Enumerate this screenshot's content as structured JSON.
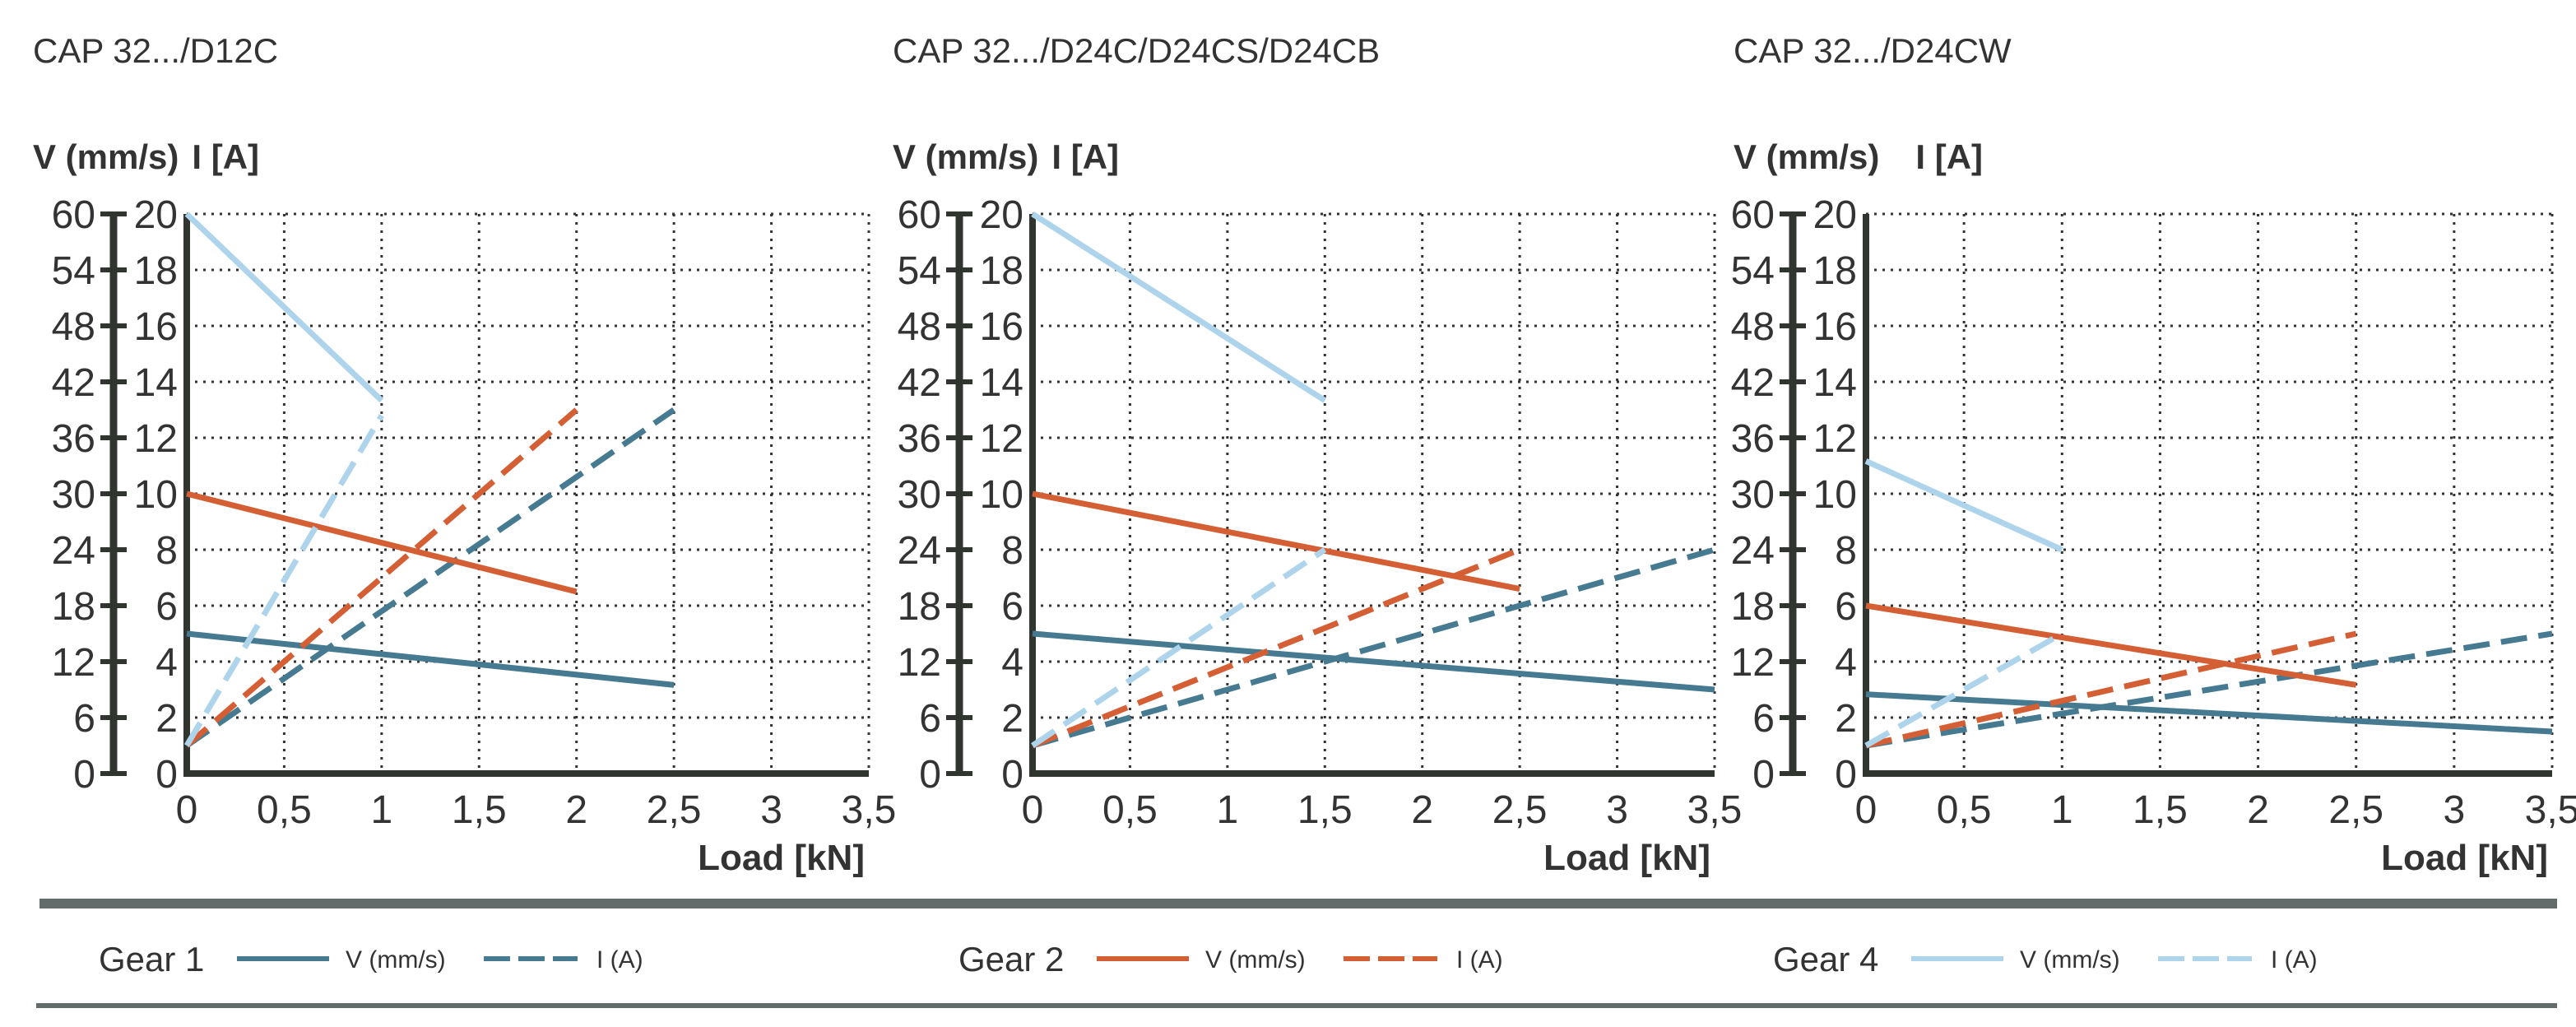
{
  "colors": {
    "gear1": "#457a91",
    "gear2": "#d45f35",
    "gear4": "#aed4ec",
    "axis": "#303530",
    "rule": "#646b6b",
    "grid": "#333333"
  },
  "legend": [
    {
      "gear": "Gear 1",
      "color_key": "gear1",
      "v_label": "V (mm/s)",
      "i_label": "I (A)"
    },
    {
      "gear": "Gear 2",
      "color_key": "gear2",
      "v_label": "V (mm/s)",
      "i_label": "I (A)"
    },
    {
      "gear": "Gear 4",
      "color_key": "gear4",
      "v_label": "V (mm/s)",
      "i_label": "I (A)"
    }
  ],
  "chart_data": [
    {
      "type": "line",
      "title": "CAP 32.../D12C",
      "ylabel_left": "V (mm/s)",
      "ylabel_right": "I [A]",
      "xlabel": "Load [kN]",
      "xlim": [
        0,
        3.5
      ],
      "ylim_v": [
        0,
        60
      ],
      "ylim_i": [
        0,
        20
      ],
      "x_ticks": [
        "0",
        "0,5",
        "1",
        "1,5",
        "2",
        "2,5",
        "3",
        "3,5"
      ],
      "v_ticks": [
        "0",
        "6",
        "12",
        "18",
        "24",
        "30",
        "36",
        "42",
        "48",
        "54",
        "60"
      ],
      "i_ticks": [
        "0",
        "2",
        "4",
        "6",
        "8",
        "10",
        "12",
        "14",
        "16",
        "18",
        "20"
      ],
      "grid": true,
      "series": [
        {
          "gear": "Gear 1",
          "quantity": "V",
          "style": "solid",
          "color_key": "gear1",
          "x": [
            0,
            2.5
          ],
          "y": [
            15,
            9.5
          ]
        },
        {
          "gear": "Gear 1",
          "quantity": "I",
          "style": "dashed",
          "color_key": "gear1",
          "x": [
            0,
            2.5
          ],
          "y": [
            1,
            13
          ]
        },
        {
          "gear": "Gear 2",
          "quantity": "V",
          "style": "solid",
          "color_key": "gear2",
          "x": [
            0,
            2
          ],
          "y": [
            30,
            19.5
          ]
        },
        {
          "gear": "Gear 2",
          "quantity": "I",
          "style": "dashed",
          "color_key": "gear2",
          "x": [
            0,
            2
          ],
          "y": [
            1,
            13
          ]
        },
        {
          "gear": "Gear 4",
          "quantity": "V",
          "style": "solid",
          "color_key": "gear4",
          "x": [
            0,
            1
          ],
          "y": [
            60,
            40
          ]
        },
        {
          "gear": "Gear 4",
          "quantity": "I",
          "style": "dashed",
          "color_key": "gear4",
          "x": [
            0,
            1
          ],
          "y": [
            1,
            12.8
          ]
        }
      ]
    },
    {
      "type": "line",
      "title": "CAP 32.../D24C/D24CS/D24CB",
      "ylabel_left": "V (mm/s)",
      "ylabel_right": "I [A]",
      "xlabel": "Load [kN]",
      "xlim": [
        0,
        3.5
      ],
      "ylim_v": [
        0,
        60
      ],
      "ylim_i": [
        0,
        20
      ],
      "x_ticks": [
        "0",
        "0,5",
        "1",
        "1,5",
        "2",
        "2,5",
        "3",
        "3,5"
      ],
      "v_ticks": [
        "0",
        "6",
        "12",
        "18",
        "24",
        "30",
        "36",
        "42",
        "48",
        "54",
        "60"
      ],
      "i_ticks": [
        "0",
        "2",
        "4",
        "6",
        "8",
        "10",
        "12",
        "14",
        "16",
        "18",
        "20"
      ],
      "grid": true,
      "series": [
        {
          "gear": "Gear 1",
          "quantity": "V",
          "style": "solid",
          "color_key": "gear1",
          "x": [
            0,
            3.5
          ],
          "y": [
            15,
            9
          ]
        },
        {
          "gear": "Gear 1",
          "quantity": "I",
          "style": "dashed",
          "color_key": "gear1",
          "x": [
            0,
            3.5
          ],
          "y": [
            1,
            8
          ]
        },
        {
          "gear": "Gear 2",
          "quantity": "V",
          "style": "solid",
          "color_key": "gear2",
          "x": [
            0,
            2.5
          ],
          "y": [
            30,
            19.8
          ]
        },
        {
          "gear": "Gear 2",
          "quantity": "I",
          "style": "dashed",
          "color_key": "gear2",
          "x": [
            0,
            2.5
          ],
          "y": [
            1,
            8
          ]
        },
        {
          "gear": "Gear 4",
          "quantity": "V",
          "style": "solid",
          "color_key": "gear4",
          "x": [
            0,
            1.5
          ],
          "y": [
            60,
            40
          ]
        },
        {
          "gear": "Gear 4",
          "quantity": "I",
          "style": "dashed",
          "color_key": "gear4",
          "x": [
            0,
            1.5
          ],
          "y": [
            1,
            8
          ]
        }
      ]
    },
    {
      "type": "line",
      "title": "CAP 32.../D24CW",
      "ylabel_left": "V (mm/s)",
      "ylabel_right": "I [A]",
      "xlabel": "Load [kN]",
      "xlim": [
        0,
        3.5
      ],
      "ylim_v": [
        0,
        60
      ],
      "ylim_i": [
        0,
        20
      ],
      "x_ticks": [
        "0",
        "0,5",
        "1",
        "1,5",
        "2",
        "2,5",
        "3",
        "3,5"
      ],
      "v_ticks": [
        "0",
        "6",
        "12",
        "18",
        "24",
        "30",
        "36",
        "42",
        "48",
        "54",
        "60"
      ],
      "i_ticks": [
        "0",
        "2",
        "4",
        "6",
        "8",
        "10",
        "12",
        "14",
        "16",
        "18",
        "20"
      ],
      "grid": true,
      "series": [
        {
          "gear": "Gear 1",
          "quantity": "V",
          "style": "solid",
          "color_key": "gear1",
          "x": [
            0,
            3.5
          ],
          "y": [
            8.5,
            4.5
          ]
        },
        {
          "gear": "Gear 1",
          "quantity": "I",
          "style": "dashed",
          "color_key": "gear1",
          "x": [
            0,
            3.5
          ],
          "y": [
            1,
            5
          ]
        },
        {
          "gear": "Gear 2",
          "quantity": "V",
          "style": "solid",
          "color_key": "gear2",
          "x": [
            0,
            2.5
          ],
          "y": [
            18,
            9.5
          ]
        },
        {
          "gear": "Gear 2",
          "quantity": "I",
          "style": "dashed",
          "color_key": "gear2",
          "x": [
            0,
            2.5
          ],
          "y": [
            1,
            5
          ]
        },
        {
          "gear": "Gear 4",
          "quantity": "V",
          "style": "solid",
          "color_key": "gear4",
          "x": [
            0,
            1
          ],
          "y": [
            33.5,
            24
          ]
        },
        {
          "gear": "Gear 4",
          "quantity": "I",
          "style": "dashed",
          "color_key": "gear4",
          "x": [
            0,
            1
          ],
          "y": [
            1,
            5
          ]
        }
      ]
    }
  ]
}
